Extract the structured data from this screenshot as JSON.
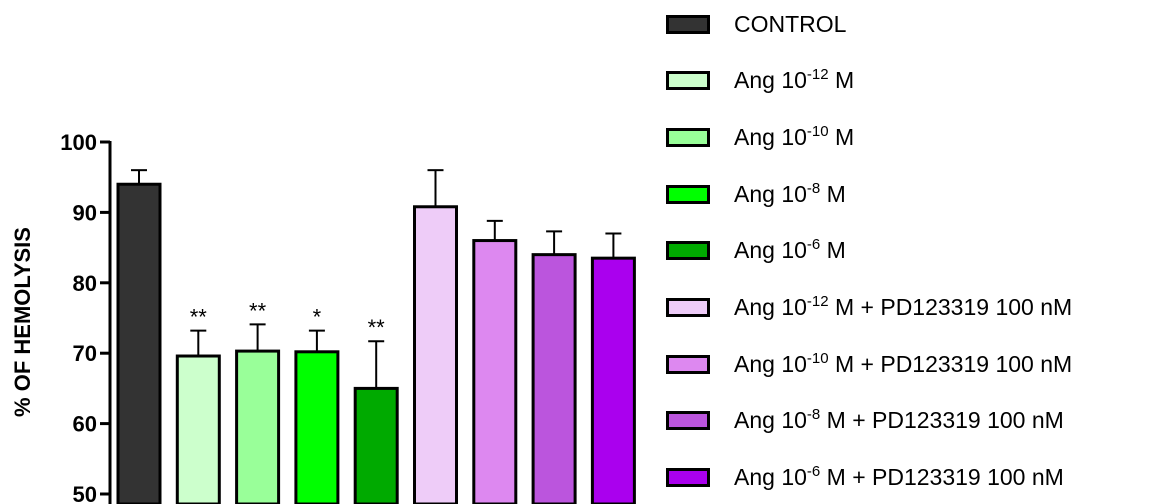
{
  "chart_data": {
    "type": "bar",
    "ylabel": "% OF HEMOLYSIS",
    "xlabel": "",
    "ylim": [
      50,
      100
    ],
    "yticks": [
      "50",
      "60",
      "70",
      "80",
      "90",
      "100"
    ],
    "grid": false,
    "legend_position": "right",
    "series": [
      {
        "name": "CONTROL",
        "value": 94.0,
        "error": 2.0,
        "sig": "",
        "color": "#333333",
        "legend": {
          "pre": "CONTROL",
          "sup": "",
          "post": ""
        }
      },
      {
        "name": "Ang 10-12 M",
        "value": 69.6,
        "error": 3.6,
        "sig": "**",
        "color": "#ccffcc",
        "legend": {
          "pre": "Ang 10",
          "sup": "-12",
          "post": " M"
        }
      },
      {
        "name": "Ang 10-10 M",
        "value": 70.3,
        "error": 3.8,
        "sig": "**",
        "color": "#99ff99",
        "legend": {
          "pre": "Ang 10",
          "sup": "-10",
          "post": " M"
        }
      },
      {
        "name": "Ang 10-8 M",
        "value": 70.2,
        "error": 3.0,
        "sig": "*",
        "color": "#00ff00",
        "legend": {
          "pre": "Ang 10",
          "sup": "-8",
          "post": " M"
        }
      },
      {
        "name": "Ang 10-6 M",
        "value": 65.0,
        "error": 6.7,
        "sig": "**",
        "color": "#00aa00",
        "legend": {
          "pre": "Ang 10",
          "sup": "-6",
          "post": " M"
        }
      },
      {
        "name": "Ang 10-12 M + PD123319 100 nM",
        "value": 90.8,
        "error": 5.2,
        "sig": "",
        "color": "#eeccf8",
        "legend": {
          "pre": "Ang 10",
          "sup": "-12",
          "post": " M + PD123319 100 nM"
        }
      },
      {
        "name": "Ang 10-10 M + PD123319 100 nM",
        "value": 86.0,
        "error": 2.8,
        "sig": "",
        "color": "#dd88f0",
        "legend": {
          "pre": "Ang 10",
          "sup": "-10",
          "post": " M + PD123319 100 nM"
        }
      },
      {
        "name": "Ang 10-8 M + PD123319 100 nM",
        "value": 84.0,
        "error": 3.3,
        "sig": "",
        "color": "#bb55dd",
        "legend": {
          "pre": "Ang 10",
          "sup": "-8",
          "post": " M + PD123319 100 nM"
        }
      },
      {
        "name": "Ang 10-6 M + PD123319 100 nM",
        "value": 83.5,
        "error": 3.5,
        "sig": "",
        "color": "#aa00ee",
        "legend": {
          "pre": "Ang 10",
          "sup": "-6",
          "post": " M + PD123319 100 nM"
        }
      }
    ]
  }
}
